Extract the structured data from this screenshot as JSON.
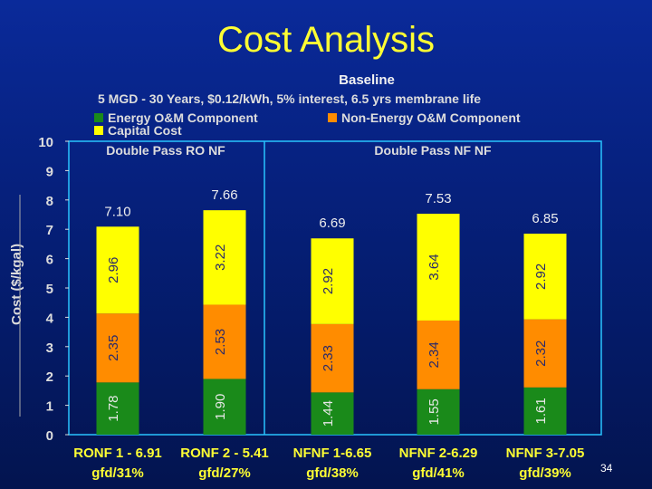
{
  "slide": {
    "title": "Cost Analysis",
    "subtitle": "Baseline",
    "subtitle2": "5 MGD - 30 Years, $0.12/kWh, 5% interest, 6.5 yrs membrane life",
    "page_number": "34"
  },
  "legend": [
    {
      "label": "Energy O&M Component",
      "color": "#1a8a1a"
    },
    {
      "label": "Non-Energy O&M Component",
      "color": "#ff8c00"
    },
    {
      "label": "Capital Cost",
      "color": "#ffff00"
    }
  ],
  "chart_data": {
    "type": "bar",
    "stacked": true,
    "ylabel": "Cost ($/kgal)",
    "ylim": [
      0,
      10
    ],
    "yticks": [
      "0",
      "1",
      "2",
      "3",
      "4",
      "5",
      "6",
      "7",
      "8",
      "9",
      "10"
    ],
    "groups": [
      "Double Pass RO NF",
      "Double Pass NF NF"
    ],
    "categories": [
      [
        "RONF 1 - 6.91",
        "gfd/31%"
      ],
      [
        "RONF 2 - 5.41",
        "gfd/27%"
      ],
      [
        "NFNF 1-6.65",
        "gfd/38%"
      ],
      [
        "NFNF 2-6.29",
        "gfd/41%"
      ],
      [
        "NFNF 3-7.05",
        "gfd/39%"
      ]
    ],
    "series": [
      {
        "name": "Energy O&M Component",
        "color": "#1a8a1a",
        "values": [
          1.78,
          1.9,
          1.44,
          1.55,
          1.61
        ],
        "labels": [
          "1.78",
          "1.90",
          "1.44",
          "1.55",
          "1.61"
        ]
      },
      {
        "name": "Non-Energy O&M Component",
        "color": "#ff8c00",
        "values": [
          2.35,
          2.53,
          2.33,
          2.34,
          2.32
        ],
        "labels": [
          "2.35",
          "2.53",
          "2.33",
          "2.34",
          "2.32"
        ]
      },
      {
        "name": "Capital Cost",
        "color": "#ffff00",
        "values": [
          2.96,
          3.22,
          2.92,
          3.64,
          2.92
        ],
        "labels": [
          "2.96",
          "3.22",
          "2.92",
          "3.64",
          "2.92"
        ]
      }
    ],
    "totals": [
      "7.10",
      "7.66",
      "6.69",
      "7.53",
      "6.85"
    ]
  }
}
